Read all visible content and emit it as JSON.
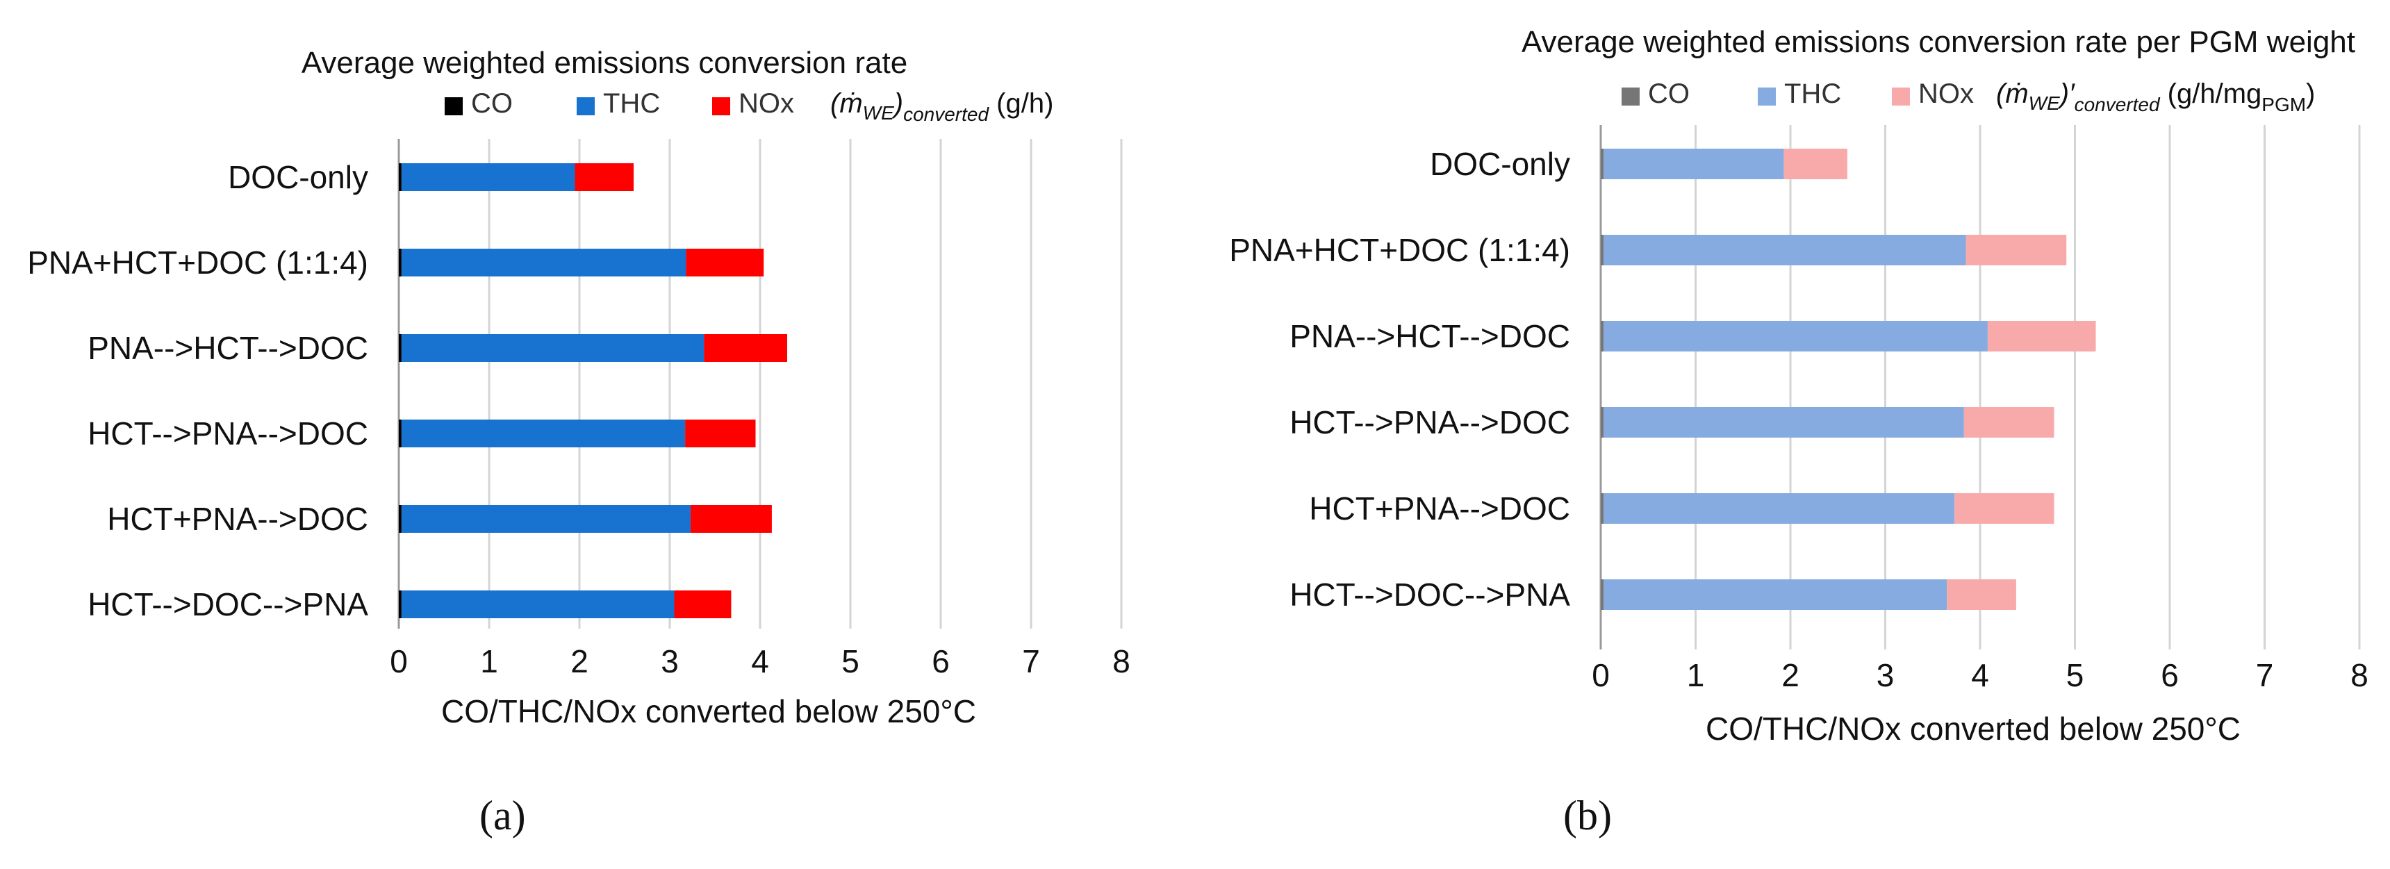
{
  "chart_data": [
    {
      "type": "bar",
      "orientation": "horizontal",
      "stacked": true,
      "title": "Average weighted emissions conversion rate",
      "xlabel": "CO/THC/NOx converted below 250°C",
      "unit_label": {
        "symbol": "(ṁ",
        "sub": "WE",
        "after": ")",
        "sub2": "converted",
        "unit": " (g/h)"
      },
      "xlim": [
        0,
        8
      ],
      "xticks": [
        0,
        1,
        2,
        3,
        4,
        5,
        6,
        7,
        8
      ],
      "grid": true,
      "legend_position": "top",
      "categories": [
        "DOC-only",
        "PNA+HCT+DOC (1:1:4)",
        "PNA-->HCT-->DOC",
        "HCT-->PNA-->DOC",
        "HCT+PNA-->DOC",
        "HCT-->DOC-->PNA"
      ],
      "series": [
        {
          "name": "CO",
          "color": "#000000",
          "values": [
            0.03,
            0.03,
            0.03,
            0.03,
            0.03,
            0.03
          ]
        },
        {
          "name": "THC",
          "color": "#1772D0",
          "values": [
            1.92,
            3.15,
            3.35,
            3.14,
            3.2,
            3.02
          ]
        },
        {
          "name": "NOx",
          "color": "#FF0000",
          "values": [
            0.65,
            0.86,
            0.92,
            0.78,
            0.9,
            0.63
          ]
        }
      ],
      "caption": "(a)"
    },
    {
      "type": "bar",
      "orientation": "horizontal",
      "stacked": true,
      "title": "Average weighted emissions conversion rate per PGM weight",
      "xlabel": "CO/THC/NOx converted below 250°C",
      "unit_label": {
        "symbol": "(ṁ",
        "sub": "WE",
        "after": ")′",
        "sub2": "converted",
        "unit": " (g/h/mg",
        "sub3": "PGM",
        "close": ")"
      },
      "xlim": [
        0,
        8
      ],
      "xticks": [
        0,
        1,
        2,
        3,
        4,
        5,
        6,
        7,
        8
      ],
      "grid": true,
      "legend_position": "top",
      "categories": [
        "DOC-only",
        "PNA+HCT+DOC (1:1:4)",
        "PNA-->HCT-->DOC",
        "HCT-->PNA-->DOC",
        "HCT+PNA-->DOC",
        "HCT-->DOC-->PNA"
      ],
      "series": [
        {
          "name": "CO",
          "color": "#767676",
          "values": [
            0.03,
            0.03,
            0.03,
            0.03,
            0.03,
            0.03
          ]
        },
        {
          "name": "THC",
          "color": "#85ABE0",
          "values": [
            1.9,
            3.82,
            4.05,
            3.8,
            3.7,
            3.62
          ]
        },
        {
          "name": "NOx",
          "color": "#F8AAAA",
          "values": [
            0.67,
            1.06,
            1.14,
            0.95,
            1.05,
            0.73
          ]
        }
      ],
      "caption": "(b)"
    }
  ]
}
